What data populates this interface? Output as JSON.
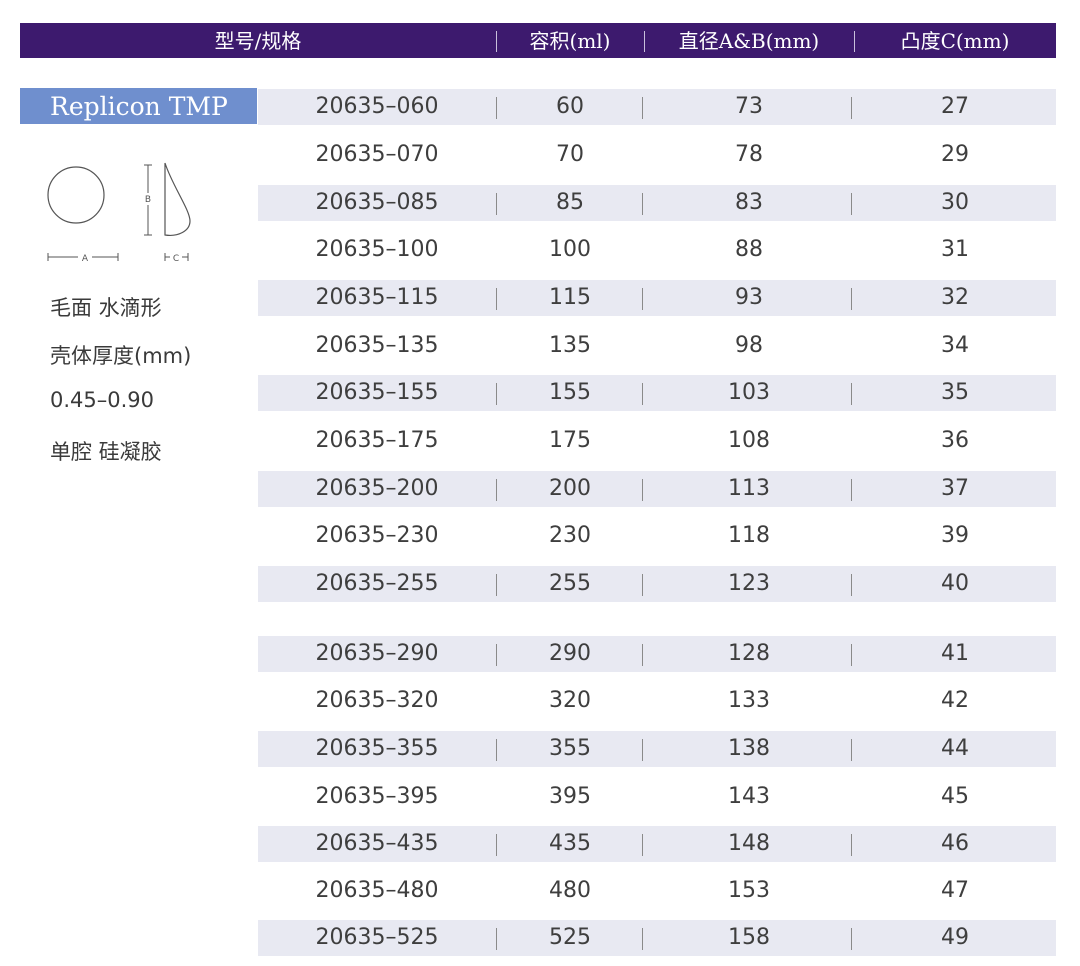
{
  "header": {
    "columns": [
      "型号/规格",
      "容积(ml)",
      "直径A&B(mm)",
      "凸度C(mm)"
    ]
  },
  "product": {
    "name": "Replicon TMP",
    "diagram_labels": {
      "a": "A",
      "b": "B",
      "c": "C"
    },
    "details": [
      "毛面 水滴形",
      "壳体厚度(mm)",
      "0.45–0.90",
      "单腔 硅凝胶"
    ]
  },
  "rows": [
    {
      "model": "20635–060",
      "volume": "60",
      "diameter": "73",
      "projection": "27"
    },
    {
      "model": "20635–070",
      "volume": "70",
      "diameter": "78",
      "projection": "29"
    },
    {
      "model": "20635–085",
      "volume": "85",
      "diameter": "83",
      "projection": "30"
    },
    {
      "model": "20635–100",
      "volume": "100",
      "diameter": "88",
      "projection": "31"
    },
    {
      "model": "20635–115",
      "volume": "115",
      "diameter": "93",
      "projection": "32"
    },
    {
      "model": "20635–135",
      "volume": "135",
      "diameter": "98",
      "projection": "34"
    },
    {
      "model": "20635–155",
      "volume": "155",
      "diameter": "103",
      "projection": "35"
    },
    {
      "model": "20635–175",
      "volume": "175",
      "diameter": "108",
      "projection": "36"
    },
    {
      "model": "20635–200",
      "volume": "200",
      "diameter": "113",
      "projection": "37"
    },
    {
      "model": "20635–230",
      "volume": "230",
      "diameter": "118",
      "projection": "39"
    },
    {
      "model": "20635–255",
      "volume": "255",
      "diameter": "123",
      "projection": "40"
    },
    {
      "model": "20635–290",
      "volume": "290",
      "diameter": "128",
      "projection": "41"
    },
    {
      "model": "20635–320",
      "volume": "320",
      "diameter": "133",
      "projection": "42"
    },
    {
      "model": "20635–355",
      "volume": "355",
      "diameter": "138",
      "projection": "44"
    },
    {
      "model": "20635–395",
      "volume": "395",
      "diameter": "143",
      "projection": "45"
    },
    {
      "model": "20635–435",
      "volume": "435",
      "diameter": "148",
      "projection": "46"
    },
    {
      "model": "20635–480",
      "volume": "480",
      "diameter": "153",
      "projection": "47"
    },
    {
      "model": "20635–525",
      "volume": "525",
      "diameter": "158",
      "projection": "49"
    }
  ],
  "colors": {
    "header_bg": "#3d1a6e",
    "badge_bg": "#6f8fce",
    "row_shade": "#e8e9f2"
  }
}
